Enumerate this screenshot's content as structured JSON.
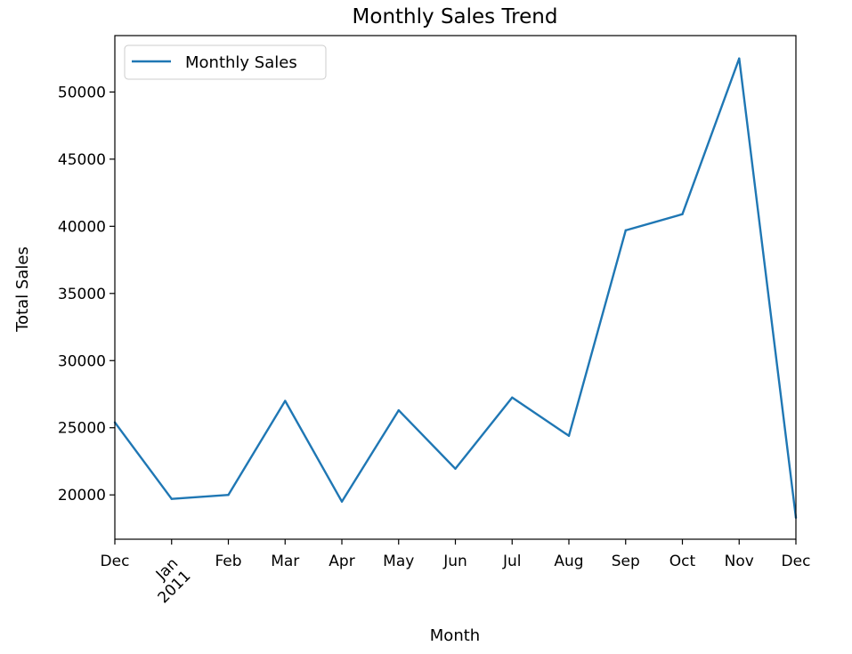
{
  "chart_data": {
    "type": "line",
    "title": "Monthly Sales Trend",
    "xlabel": "Month",
    "ylabel": "Total Sales",
    "x": [
      "2010-12",
      "2011-01",
      "2011-02",
      "2011-03",
      "2011-04",
      "2011-05",
      "2011-06",
      "2011-07",
      "2011-08",
      "2011-09",
      "2011-10",
      "2011-11",
      "2011-12"
    ],
    "x_tick_labels": [
      "Dec",
      "Jan\n2011",
      "Feb",
      "Mar",
      "Apr",
      "May",
      "Jun",
      "Jul",
      "Aug",
      "Sep",
      "Oct",
      "Nov",
      "Dec"
    ],
    "series": [
      {
        "name": "Monthly Sales",
        "color": "#1f77b4",
        "values": [
          25400,
          19700,
          20000,
          27000,
          19500,
          26300,
          21950,
          27250,
          24400,
          39700,
          40900,
          52500,
          18300
        ]
      }
    ],
    "ylim": [
      16700,
      54200
    ],
    "y_ticks": [
      20000,
      25000,
      30000,
      35000,
      40000,
      45000,
      50000
    ],
    "grid": false,
    "legend_position": "upper-left"
  }
}
